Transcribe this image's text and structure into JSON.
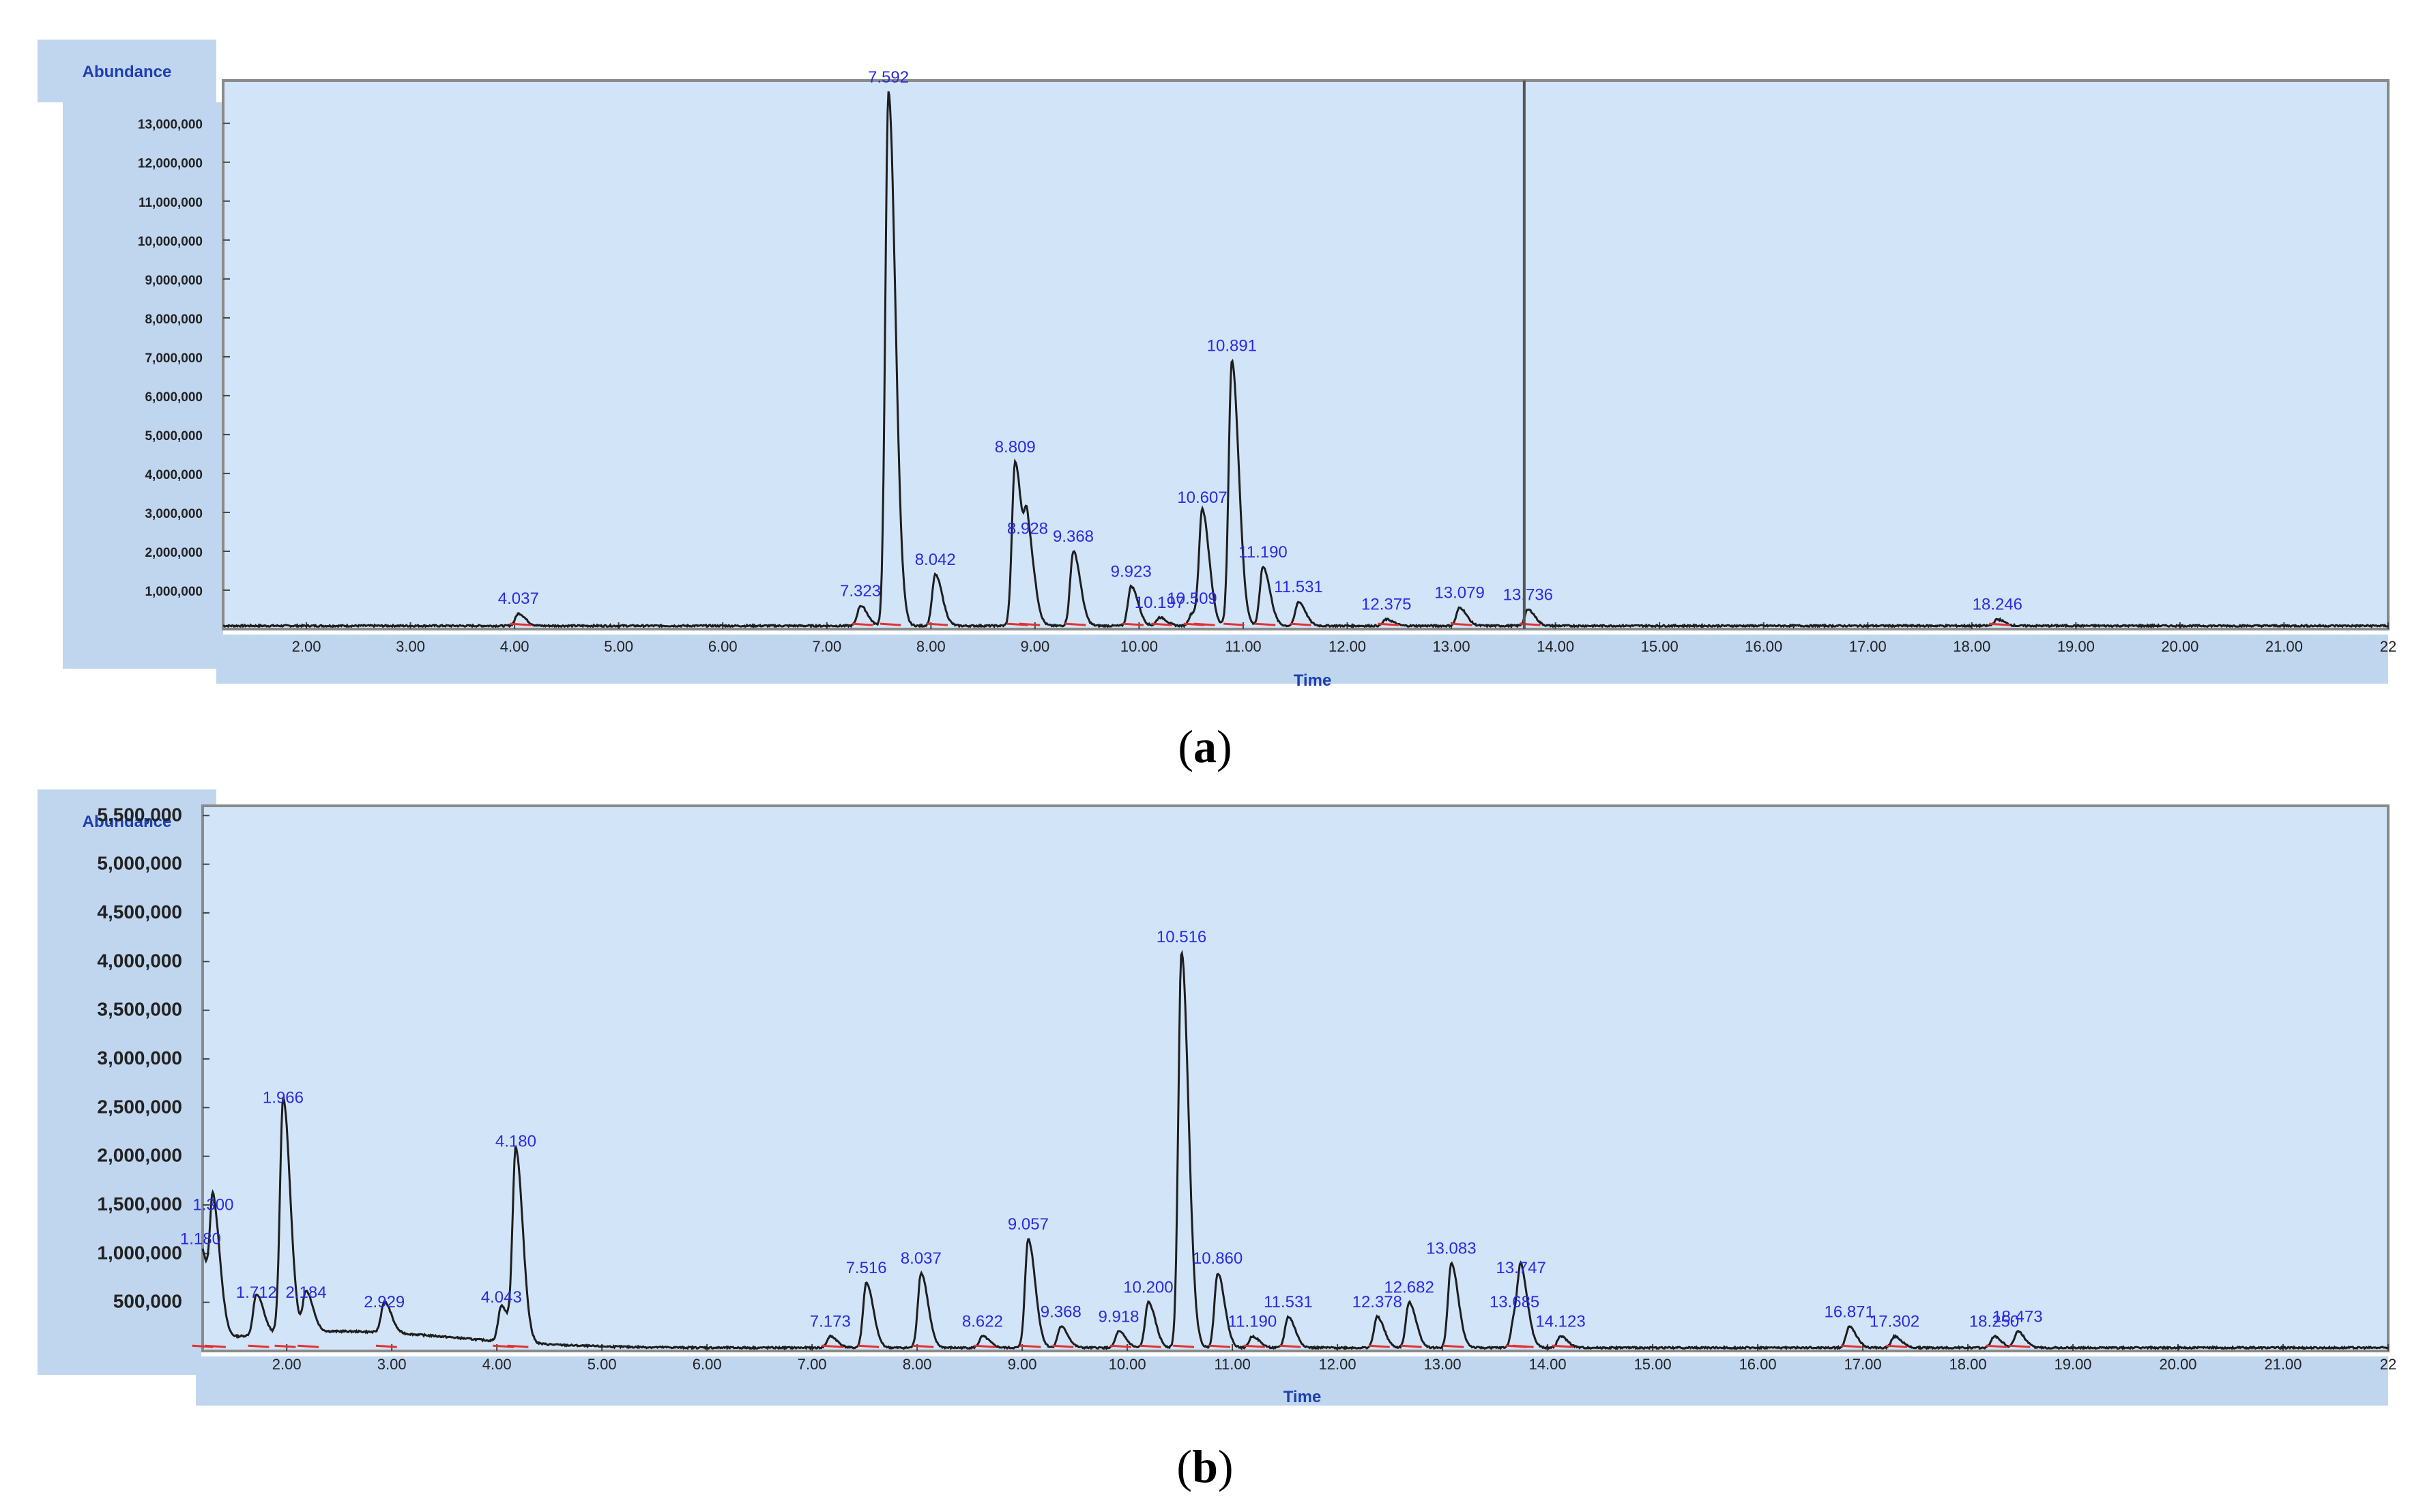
{
  "panels": [
    {
      "id": "a",
      "caption_letter": "a",
      "chart_data": {
        "type": "line",
        "ylabel": "Abundance",
        "xlabel": "Time",
        "xlim": [
          1.2,
          22.0
        ],
        "ylim": [
          0,
          14100000
        ],
        "x_ticks": [
          {
            "value": 2,
            "label": "2.00"
          },
          {
            "value": 3,
            "label": "3.00"
          },
          {
            "value": 4,
            "label": "4.00"
          },
          {
            "value": 5,
            "label": "5.00"
          },
          {
            "value": 6,
            "label": "6.00"
          },
          {
            "value": 7,
            "label": "7.00"
          },
          {
            "value": 8,
            "label": "8.00"
          },
          {
            "value": 9,
            "label": "9.00"
          },
          {
            "value": 10,
            "label": "10.00"
          },
          {
            "value": 11,
            "label": "11.00"
          },
          {
            "value": 12,
            "label": "12.00"
          },
          {
            "value": 13,
            "label": "13.00"
          },
          {
            "value": 14,
            "label": "14.00"
          },
          {
            "value": 15,
            "label": "15.00"
          },
          {
            "value": 16,
            "label": "16.00"
          },
          {
            "value": 17,
            "label": "17.00"
          },
          {
            "value": 18,
            "label": "18.00"
          },
          {
            "value": 19,
            "label": "19.00"
          },
          {
            "value": 20,
            "label": "20.00"
          },
          {
            "value": 21,
            "label": "21.00"
          },
          {
            "value": 22,
            "label": "22"
          }
        ],
        "y_ticks": [
          {
            "value": 1000000,
            "label": "1,000,000"
          },
          {
            "value": 2000000,
            "label": "2,000,000"
          },
          {
            "value": 3000000,
            "label": "3,000,000"
          },
          {
            "value": 4000000,
            "label": "4,000,000"
          },
          {
            "value": 5000000,
            "label": "5,000,000"
          },
          {
            "value": 6000000,
            "label": "6,000,000"
          },
          {
            "value": 7000000,
            "label": "7,000,000"
          },
          {
            "value": 8000000,
            "label": "8,000,000"
          },
          {
            "value": 9000000,
            "label": "9,000,000"
          },
          {
            "value": 10000000,
            "label": "10,000,000"
          },
          {
            "value": 11000000,
            "label": "11,000,000"
          },
          {
            "value": 12000000,
            "label": "12,000,000"
          },
          {
            "value": 13000000,
            "label": "13,000,000"
          }
        ],
        "peaks": [
          {
            "x": 4.037,
            "y": 400000,
            "label": "4.037"
          },
          {
            "x": 7.323,
            "y": 600000,
            "label": "7.323"
          },
          {
            "x": 7.592,
            "y": 13800000,
            "label": "7.592"
          },
          {
            "x": 8.042,
            "y": 1400000,
            "label": "8.042"
          },
          {
            "x": 8.809,
            "y": 4300000,
            "label": "8.809"
          },
          {
            "x": 8.928,
            "y": 2200000,
            "label": "8.928"
          },
          {
            "x": 9.368,
            "y": 2000000,
            "label": "9.368"
          },
          {
            "x": 9.923,
            "y": 1100000,
            "label": "9.923"
          },
          {
            "x": 10.197,
            "y": 300000,
            "label": "10.197"
          },
          {
            "x": 10.509,
            "y": 400000,
            "label": "10.509"
          },
          {
            "x": 10.607,
            "y": 3000000,
            "label": "10.607"
          },
          {
            "x": 10.891,
            "y": 6900000,
            "label": "10.891"
          },
          {
            "x": 11.19,
            "y": 1600000,
            "label": "11.190"
          },
          {
            "x": 11.531,
            "y": 700000,
            "label": "11.531"
          },
          {
            "x": 12.375,
            "y": 250000,
            "label": "12.375"
          },
          {
            "x": 13.079,
            "y": 550000,
            "label": "13.079"
          },
          {
            "x": 13.736,
            "y": 500000,
            "label": "13.736"
          },
          {
            "x": 18.246,
            "y": 250000,
            "label": "18.246"
          }
        ],
        "cursor_x": 13.7
      }
    },
    {
      "id": "b",
      "caption_letter": "b",
      "chart_data": {
        "type": "line",
        "ylabel": "Abundance",
        "xlabel": "Time",
        "xlim": [
          1.2,
          22.0
        ],
        "ylim": [
          0,
          5600000
        ],
        "x_ticks": [
          {
            "value": 2,
            "label": "2.00"
          },
          {
            "value": 3,
            "label": "3.00"
          },
          {
            "value": 4,
            "label": "4.00"
          },
          {
            "value": 5,
            "label": "5.00"
          },
          {
            "value": 6,
            "label": "6.00"
          },
          {
            "value": 7,
            "label": "7.00"
          },
          {
            "value": 8,
            "label": "8.00"
          },
          {
            "value": 9,
            "label": "9.00"
          },
          {
            "value": 10,
            "label": "10.00"
          },
          {
            "value": 11,
            "label": "11.00"
          },
          {
            "value": 12,
            "label": "12.00"
          },
          {
            "value": 13,
            "label": "13.00"
          },
          {
            "value": 14,
            "label": "14.00"
          },
          {
            "value": 15,
            "label": "15.00"
          },
          {
            "value": 16,
            "label": "16.00"
          },
          {
            "value": 17,
            "label": "17.00"
          },
          {
            "value": 18,
            "label": "18.00"
          },
          {
            "value": 19,
            "label": "19.00"
          },
          {
            "value": 20,
            "label": "20.00"
          },
          {
            "value": 21,
            "label": "21.00"
          },
          {
            "value": 22,
            "label": "22"
          }
        ],
        "y_ticks": [
          {
            "value": 500000,
            "label": "500,000"
          },
          {
            "value": 1000000,
            "label": "1,000,000"
          },
          {
            "value": 1500000,
            "label": "1,500,000"
          },
          {
            "value": 2000000,
            "label": "2,000,000"
          },
          {
            "value": 2500000,
            "label": "2,500,000"
          },
          {
            "value": 3000000,
            "label": "3,000,000"
          },
          {
            "value": 3500000,
            "label": "3,500,000"
          },
          {
            "value": 4000000,
            "label": "4,000,000"
          },
          {
            "value": 4500000,
            "label": "4,500,000"
          },
          {
            "value": 5000000,
            "label": "5,000,000"
          },
          {
            "value": 5500000,
            "label": "5,500,000"
          }
        ],
        "peaks": [
          {
            "x": 1.18,
            "y": 1000000,
            "label": "1.180"
          },
          {
            "x": 1.3,
            "y": 1350000,
            "label": "1.300"
          },
          {
            "x": 1.712,
            "y": 450000,
            "label": "1.712"
          },
          {
            "x": 1.966,
            "y": 2450000,
            "label": "1.966"
          },
          {
            "x": 2.184,
            "y": 450000,
            "label": "2.184"
          },
          {
            "x": 2.929,
            "y": 350000,
            "label": "2.929"
          },
          {
            "x": 4.043,
            "y": 400000,
            "label": "4.043"
          },
          {
            "x": 4.18,
            "y": 2000000,
            "label": "4.180"
          },
          {
            "x": 7.173,
            "y": 150000,
            "label": "7.173"
          },
          {
            "x": 7.516,
            "y": 700000,
            "label": "7.516"
          },
          {
            "x": 8.037,
            "y": 800000,
            "label": "8.037"
          },
          {
            "x": 8.622,
            "y": 150000,
            "label": "8.622"
          },
          {
            "x": 9.057,
            "y": 1150000,
            "label": "9.057"
          },
          {
            "x": 9.368,
            "y": 250000,
            "label": "9.368"
          },
          {
            "x": 9.918,
            "y": 200000,
            "label": "9.918"
          },
          {
            "x": 10.2,
            "y": 500000,
            "label": "10.200"
          },
          {
            "x": 10.516,
            "y": 4100000,
            "label": "10.516"
          },
          {
            "x": 10.86,
            "y": 800000,
            "label": "10.860"
          },
          {
            "x": 11.19,
            "y": 150000,
            "label": "11.190"
          },
          {
            "x": 11.531,
            "y": 350000,
            "label": "11.531"
          },
          {
            "x": 12.378,
            "y": 350000,
            "label": "12.378"
          },
          {
            "x": 12.682,
            "y": 500000,
            "label": "12.682"
          },
          {
            "x": 13.083,
            "y": 900000,
            "label": "13.083"
          },
          {
            "x": 13.685,
            "y": 350000,
            "label": "13.685"
          },
          {
            "x": 13.747,
            "y": 700000,
            "label": "13.747"
          },
          {
            "x": 14.123,
            "y": 150000,
            "label": "14.123"
          },
          {
            "x": 16.871,
            "y": 250000,
            "label": "16.871"
          },
          {
            "x": 17.302,
            "y": 150000,
            "label": "17.302"
          },
          {
            "x": 18.25,
            "y": 150000,
            "label": "18.250"
          },
          {
            "x": 18.473,
            "y": 200000,
            "label": "18.473"
          }
        ]
      }
    }
  ],
  "colors": {
    "plot_bg": "#d2e4f8",
    "frame_bg": "#bfd6ee",
    "trace": "#1e1e1e",
    "baseline": "#e03030",
    "peak_label": "#2a2ae0",
    "axis_label": "#1f3fb0",
    "tick_text": "#222222"
  }
}
